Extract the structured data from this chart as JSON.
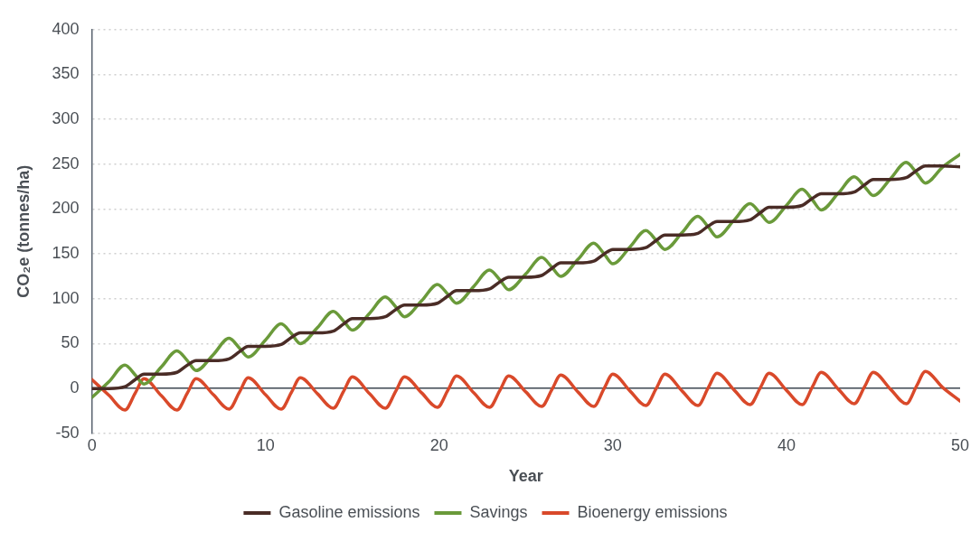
{
  "chart_data": {
    "type": "line",
    "xlabel": "Year",
    "ylabel": "CO₂e (tonnes/ha)",
    "x": [
      0,
      1,
      1.9,
      2.5,
      3,
      4,
      4.9,
      5.5,
      6,
      7,
      7.9,
      8.5,
      9,
      10,
      10.9,
      11.5,
      12,
      13,
      13.9,
      14.5,
      15,
      16,
      16.9,
      17.5,
      18,
      19,
      19.9,
      20.5,
      21,
      22,
      22.9,
      23.5,
      24,
      25,
      25.9,
      26.5,
      27,
      28,
      28.9,
      29.5,
      30,
      31,
      31.9,
      32.5,
      33,
      34,
      34.9,
      35.5,
      36,
      37,
      37.9,
      38.5,
      39,
      40,
      40.9,
      41.5,
      42,
      43,
      43.9,
      44.5,
      45,
      46,
      46.9,
      47.5,
      48,
      49,
      50
    ],
    "series": [
      {
        "name": "Gasoline emissions",
        "color": "#4a2c26",
        "values": [
          0,
          0,
          2,
          10,
          16,
          16,
          18,
          26,
          31,
          31,
          33,
          41,
          47,
          47,
          49,
          57,
          62,
          62,
          64,
          72,
          78,
          78,
          80,
          88,
          93,
          93,
          95,
          103,
          109,
          109,
          111,
          119,
          124,
          124,
          126,
          134,
          140,
          140,
          142,
          150,
          155,
          155,
          157,
          165,
          171,
          171,
          173,
          181,
          186,
          186,
          188,
          196,
          202,
          202,
          204,
          212,
          217,
          217,
          219,
          227,
          233,
          233,
          235,
          243,
          248,
          248,
          247
        ]
      },
      {
        "name": "Savings",
        "color": "#6a9a3a",
        "values": [
          -10,
          8,
          26,
          15,
          5,
          24,
          42,
          31,
          20,
          38,
          56,
          45,
          35,
          54,
          72,
          61,
          50,
          68,
          86,
          75,
          65,
          84,
          102,
          91,
          80,
          98,
          116,
          105,
          95,
          114,
          132,
          121,
          110,
          128,
          146,
          135,
          125,
          144,
          162,
          150,
          139,
          158,
          176,
          165,
          155,
          174,
          192,
          180,
          169,
          188,
          206,
          195,
          185,
          204,
          222,
          210,
          199,
          218,
          236,
          225,
          215,
          234,
          252,
          240,
          229,
          247,
          261
        ]
      },
      {
        "name": "Bioenergy emissions",
        "color": "#d9492a",
        "values": [
          10,
          -8,
          -24,
          -5,
          11,
          -8,
          -24,
          -5,
          11,
          -7,
          -23,
          -4,
          12,
          -7,
          -23,
          -4,
          12,
          -6,
          -22,
          -3,
          13,
          -6,
          -22,
          -3,
          13,
          -5,
          -21,
          -2,
          14,
          -5,
          -21,
          -2,
          14,
          -4,
          -20,
          -1,
          15,
          -4,
          -20,
          0,
          16,
          -3,
          -19,
          0,
          16,
          -3,
          -19,
          1,
          17,
          -2,
          -18,
          1,
          17,
          -2,
          -18,
          2,
          18,
          -1,
          -17,
          2,
          18,
          -1,
          -17,
          3,
          19,
          1,
          -14
        ]
      }
    ],
    "xlim": [
      0,
      50
    ],
    "xticks": [
      0,
      10,
      20,
      30,
      40,
      50
    ],
    "ylim": [
      -50,
      400
    ],
    "yticks": [
      -50,
      0,
      50,
      100,
      150,
      200,
      250,
      300,
      350,
      400
    ],
    "grid": "y",
    "legend": "bottom",
    "marker": "none",
    "line_style": "solid"
  }
}
